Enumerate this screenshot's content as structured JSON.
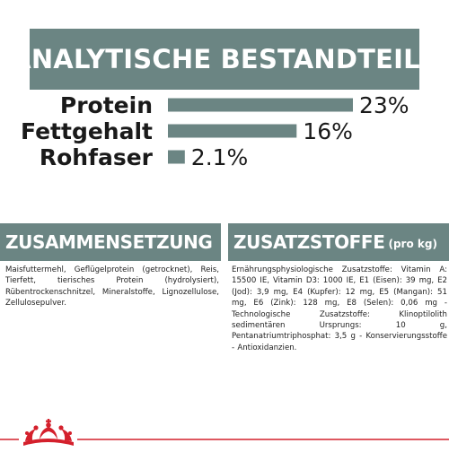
{
  "header": {
    "title": "ANALYTISCHE BESTANDTEILE"
  },
  "colors": {
    "accent": "#6b8583",
    "brand_red": "#d4202c",
    "text": "#1a1a1a"
  },
  "chart_data": {
    "type": "bar",
    "orientation": "horizontal",
    "categories": [
      "Protein",
      "Fettgehalt",
      "Rohfaser"
    ],
    "values": [
      23,
      16,
      2.1
    ],
    "value_labels": [
      "23%",
      "16%",
      "2.1%"
    ],
    "unit": "%",
    "xlim": [
      0,
      23
    ],
    "grid": false,
    "legend": "none"
  },
  "sections": {
    "composition": {
      "title": "ZUSAMMENSETZUNG",
      "text": "Maisfuttermehl, Geflügelprotein (getrocknet), Reis, Tierfett, tierisches Protein (hydrolysiert), Rübentrockenschnitzel, Mineralstoffe, Lignozellulose, Zellulosepulver."
    },
    "additives": {
      "title": "ZUSATZSTOFFE",
      "title_suffix": "(pro kg)",
      "text": "Ernährungsphysiologische Zusatzstoffe: Vitamin A: 15500 IE, Vitamin D3: 1000 IE, E1 (Eisen): 39 mg, E2 (Jod): 3,9 mg, E4 (Kupfer): 12 mg, E5 (Mangan): 51 mg, E6 (Zink): 128 mg, E8 (Selen): 0,06 mg - Technologische Zusatzstoffe: Klinoptilolith sedimentären Ursprungs: 10 g, Pentanatriumtriphosphat: 3,5 g - Konservierungsstoffe - Antioxidanzien."
    }
  },
  "footer": {
    "logo_icon": "crown-icon"
  }
}
